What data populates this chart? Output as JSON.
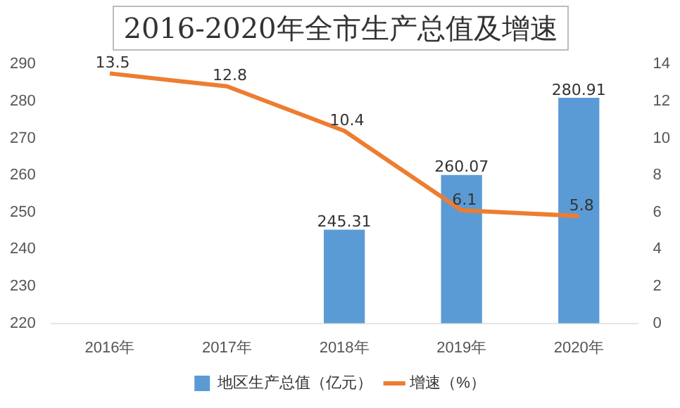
{
  "chart_data": {
    "type": "bar",
    "title": "2016-2020年全市生产总值及增速",
    "categories": [
      "2016年",
      "2017年",
      "2018年",
      "2019年",
      "2020年"
    ],
    "series": [
      {
        "name": "地区生产总值（亿元）",
        "color": "#5b9bd5",
        "values": [
          null,
          null,
          245.31,
          260.07,
          280.91
        ]
      },
      {
        "name": "增速（%）",
        "type": "line",
        "axis": "y2",
        "color": "#ed7d31",
        "values": [
          13.5,
          12.8,
          10.4,
          6.1,
          5.8
        ]
      }
    ],
    "ylim": [
      220,
      290
    ],
    "yticks": [
      220,
      230,
      240,
      250,
      260,
      270,
      280,
      290
    ],
    "y2lim": [
      0,
      14
    ],
    "y2ticks": [
      0,
      2,
      4,
      6,
      8,
      10,
      12,
      14
    ],
    "data_labels": true,
    "legend": "bottom",
    "marker": "none",
    "line_style": "solid"
  }
}
